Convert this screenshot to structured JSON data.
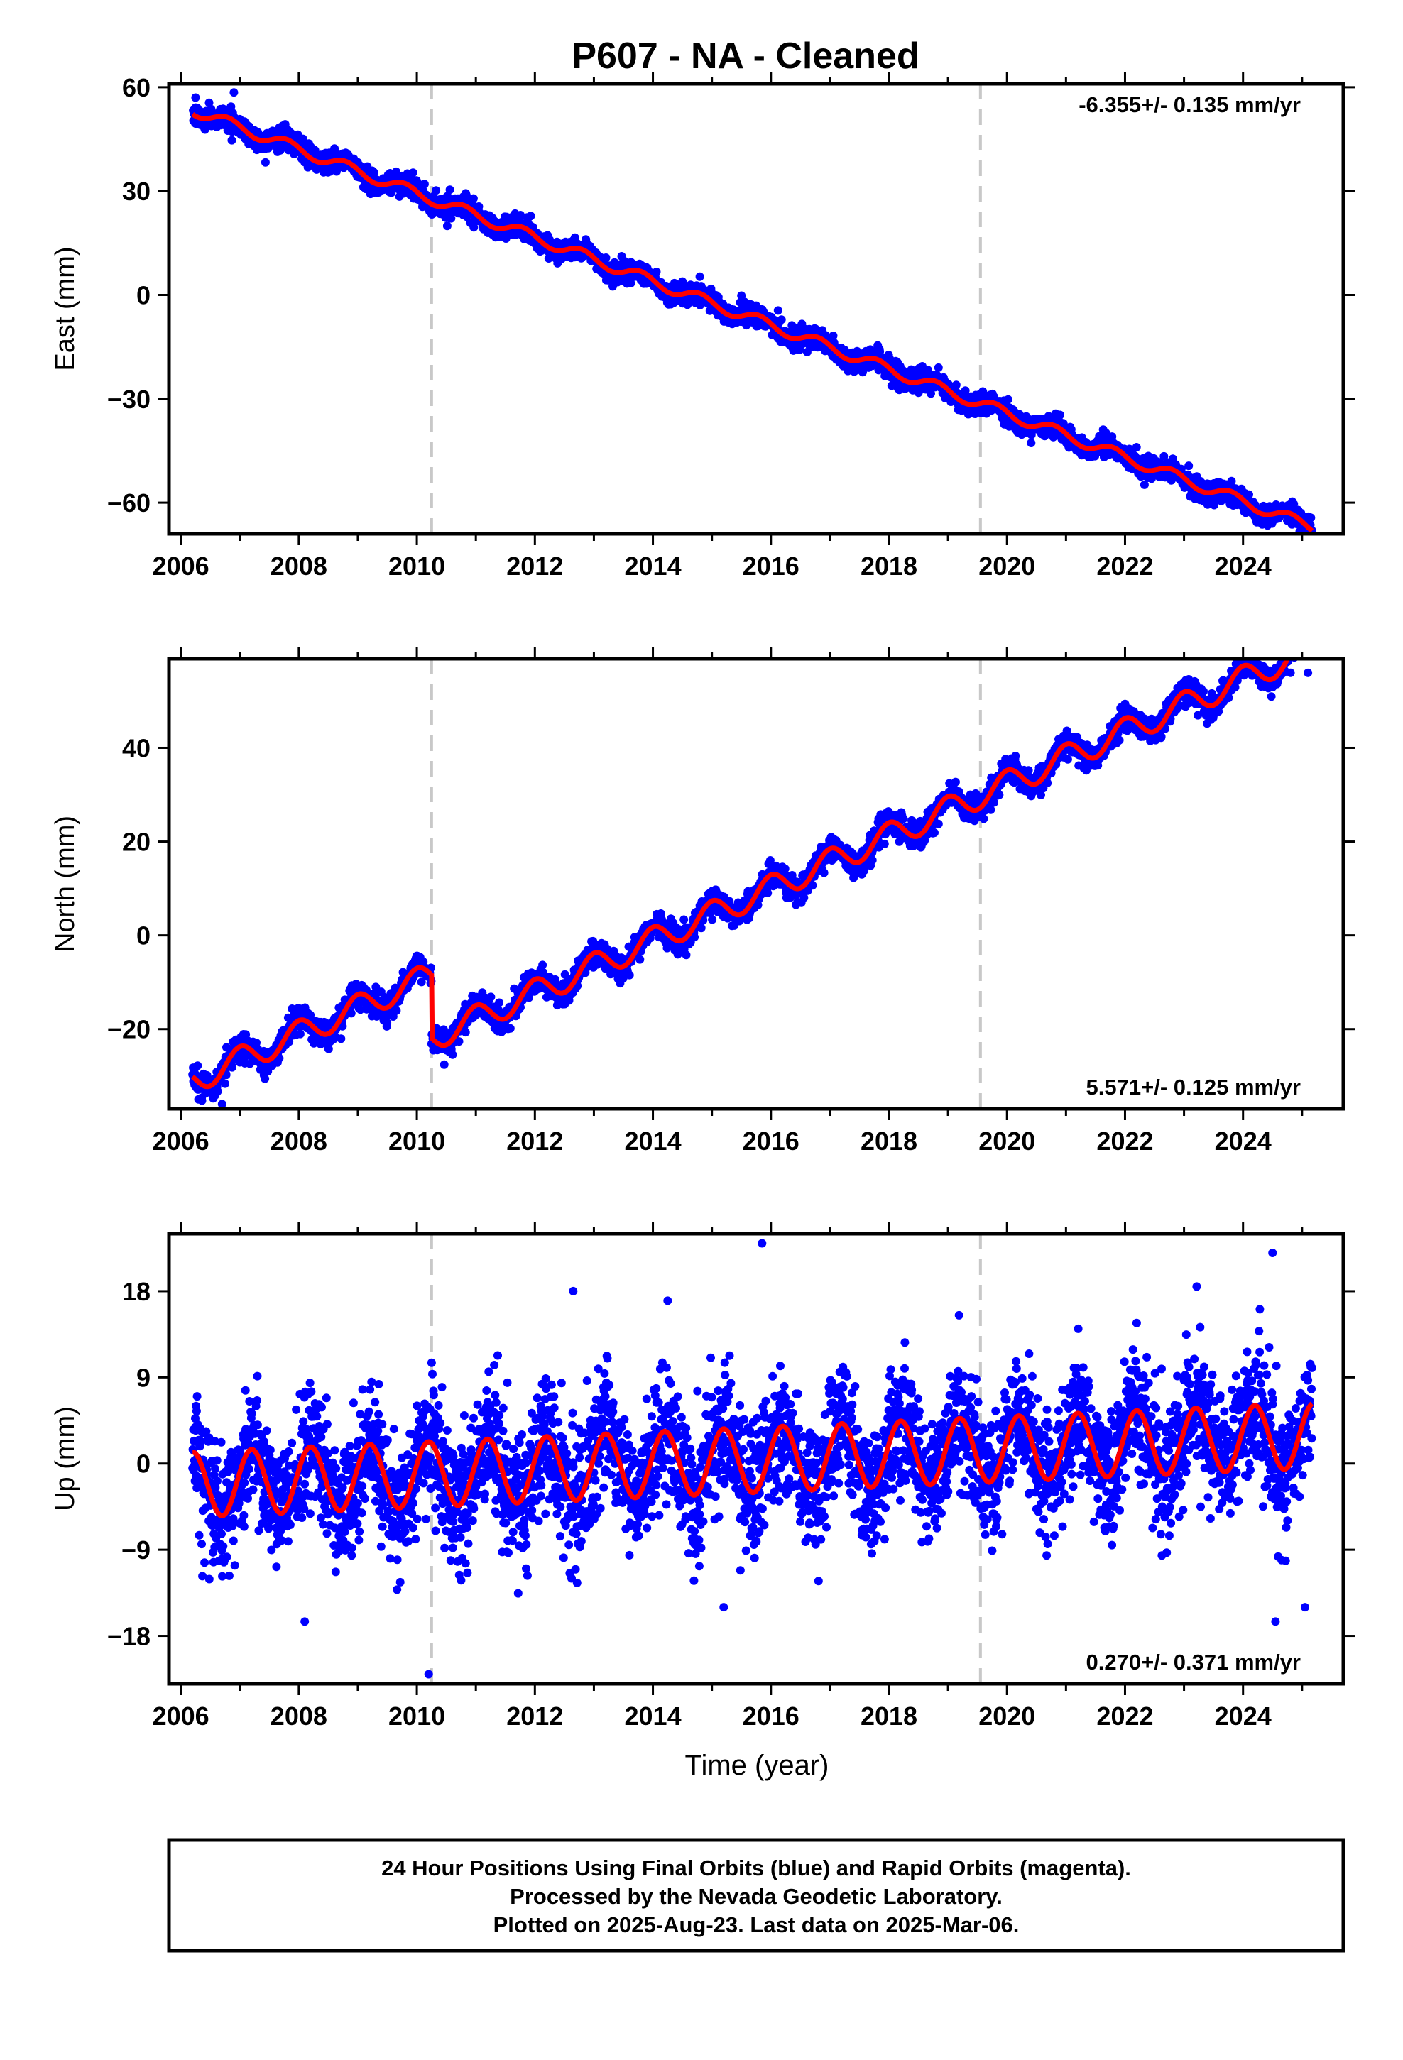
{
  "title": "P607  - NA - Cleaned",
  "xlabel": "Time (year)",
  "footer": {
    "line1": "24 Hour Positions Using Final Orbits (blue) and Rapid Orbits (magenta).",
    "line2": "Processed by the Nevada Geodetic Laboratory.",
    "line3": "Plotted on 2025-Aug-23. Last data on 2025-Mar-06."
  },
  "colors": {
    "observed": "#0000ff",
    "model": "#ff0000",
    "event_line": "#c8c8c8"
  },
  "chart_data": [
    {
      "type": "scatter",
      "name": "east",
      "ylabel": "East (mm)",
      "rate": "-6.355+/- 0.135 mm/yr",
      "rate_position": "top-right",
      "xlim": [
        2005.8,
        2025.7
      ],
      "ylim": [
        -69,
        61
      ],
      "xticks": [
        2006,
        2008,
        2010,
        2012,
        2014,
        2016,
        2018,
        2020,
        2022,
        2024
      ],
      "yticks": [
        60,
        30,
        0,
        -30,
        -60
      ],
      "offsets": [
        2010.25,
        2019.55
      ],
      "model": {
        "start": 2006.2,
        "end": 2025.17,
        "intercept": 53.5,
        "rate": -6.355,
        "amplitude": 1.6,
        "phase_year": 0.35,
        "step": []
      },
      "scatter": {
        "std": 1.5,
        "spacing_years": 0.005
      },
      "observed_extremes": [
        [
          2006.25,
          57
        ],
        [
          2006.9,
          58.5
        ],
        [
          2025.1,
          -66.5
        ],
        [
          2024.95,
          -64
        ]
      ]
    },
    {
      "type": "scatter",
      "name": "north",
      "ylabel": "North (mm)",
      "rate": "5.571+/- 0.125 mm/yr",
      "rate_position": "bottom-right",
      "xlim": [
        2005.8,
        2025.7
      ],
      "ylim": [
        -37,
        59
      ],
      "xticks": [
        2006,
        2008,
        2010,
        2012,
        2014,
        2016,
        2018,
        2020,
        2022,
        2024
      ],
      "yticks": [
        40,
        20,
        0,
        -20
      ],
      "offsets": [
        2010.25,
        2019.55
      ],
      "model": {
        "start": 2006.2,
        "end": 2025.17,
        "intercept": -31,
        "rate": 5.571,
        "amplitude": 2.8,
        "phase_year": 0.55,
        "step": [
          {
            "at": 2010.25,
            "size": -13.5
          }
        ]
      },
      "scatter": {
        "std": 1.3,
        "spacing_years": 0.005
      },
      "observed_extremes": [
        [
          2006.3,
          -35
        ],
        [
          2006.7,
          -36
        ],
        [
          2024.55,
          57
        ],
        [
          2025.1,
          56
        ]
      ]
    },
    {
      "type": "scatter",
      "name": "up",
      "ylabel": "Up (mm)",
      "rate": "0.270+/- 0.371 mm/yr",
      "rate_position": "bottom-right",
      "xlim": [
        2005.8,
        2025.7
      ],
      "ylim": [
        -23,
        24
      ],
      "xticks": [
        2006,
        2008,
        2010,
        2012,
        2014,
        2016,
        2018,
        2020,
        2022,
        2024
      ],
      "yticks": [
        18,
        9,
        0,
        -9,
        -18
      ],
      "offsets": [
        2010.25,
        2019.55
      ],
      "model": {
        "start": 2006.2,
        "end": 2025.17,
        "intercept": -2.2,
        "rate": 0.27,
        "amplitude": 3.4,
        "phase_year": 0.75,
        "step": []
      },
      "scatter": {
        "std": 3.3,
        "spacing_years": 0.0045
      },
      "observed_extremes": [
        [
          2015.85,
          23
        ],
        [
          2024.5,
          22
        ],
        [
          2010.2,
          -22
        ],
        [
          2024.55,
          -16.5
        ],
        [
          2008.1,
          -16.5
        ],
        [
          2015.2,
          -15
        ],
        [
          2025.05,
          -15
        ],
        [
          2012.65,
          18
        ],
        [
          2014.25,
          17
        ]
      ]
    }
  ]
}
